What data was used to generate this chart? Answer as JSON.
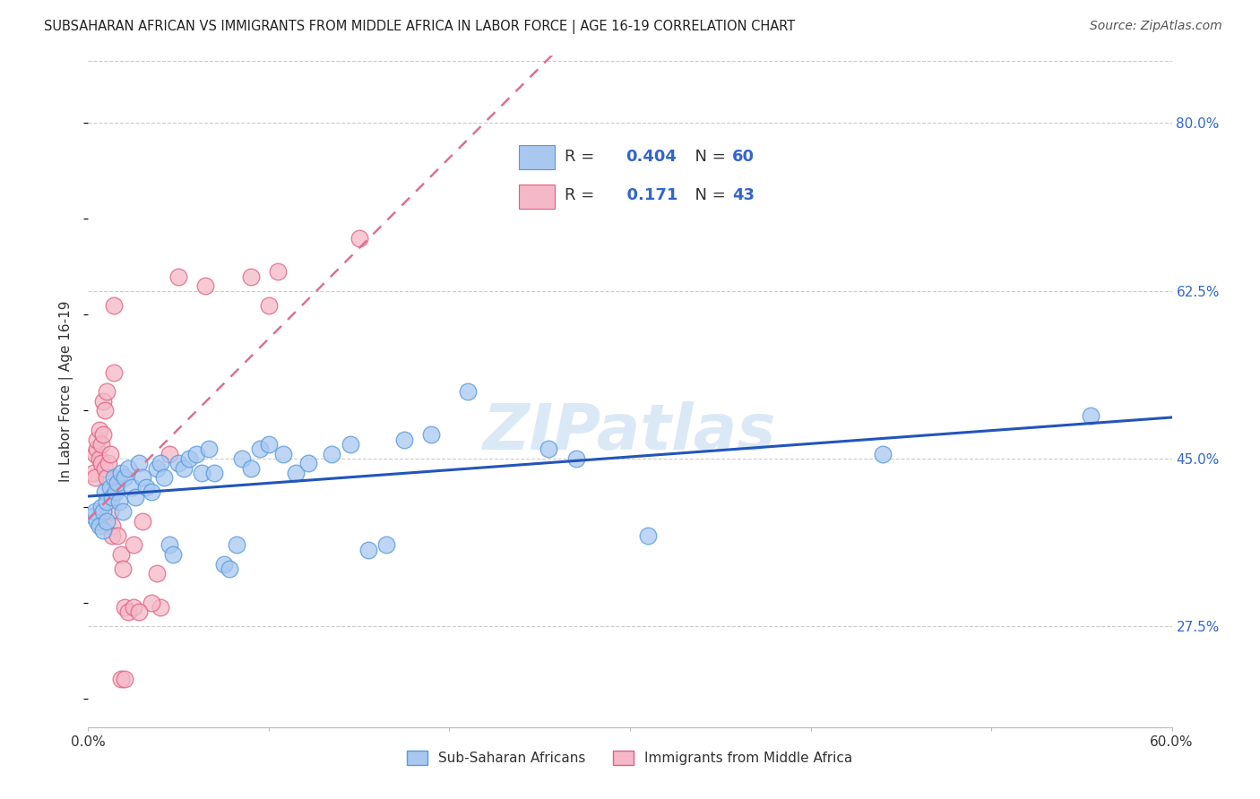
{
  "title": "SUBSAHARAN AFRICAN VS IMMIGRANTS FROM MIDDLE AFRICA IN LABOR FORCE | AGE 16-19 CORRELATION CHART",
  "source": "Source: ZipAtlas.com",
  "ylabel": "In Labor Force | Age 16-19",
  "xlim": [
    0.0,
    0.6
  ],
  "ylim": [
    0.17,
    0.87
  ],
  "xticks": [
    0.0,
    0.1,
    0.2,
    0.3,
    0.4,
    0.5,
    0.6
  ],
  "xticklabels": [
    "0.0%",
    "",
    "",
    "",
    "",
    "",
    "60.0%"
  ],
  "yticks_right": [
    0.275,
    0.45,
    0.625,
    0.8
  ],
  "ytick_labels_right": [
    "27.5%",
    "45.0%",
    "62.5%",
    "80.0%"
  ],
  "blue_R": 0.404,
  "blue_N": 60,
  "pink_R": 0.171,
  "pink_N": 43,
  "blue_color": "#A8C8F0",
  "pink_color": "#F5B8C8",
  "blue_edge_color": "#5599DD",
  "pink_edge_color": "#E06080",
  "blue_line_color": "#2255BB",
  "pink_line_color": "#DD7090",
  "legend_text_color": "#3366CC",
  "text_color": "#333333",
  "grid_color": "#CCCCCC",
  "watermark_color": "#B8D4F0",
  "blue_scatter": [
    [
      0.003,
      0.39
    ],
    [
      0.004,
      0.395
    ],
    [
      0.005,
      0.385
    ],
    [
      0.006,
      0.38
    ],
    [
      0.007,
      0.4
    ],
    [
      0.008,
      0.375
    ],
    [
      0.008,
      0.395
    ],
    [
      0.009,
      0.415
    ],
    [
      0.01,
      0.405
    ],
    [
      0.01,
      0.385
    ],
    [
      0.012,
      0.42
    ],
    [
      0.013,
      0.41
    ],
    [
      0.014,
      0.43
    ],
    [
      0.015,
      0.415
    ],
    [
      0.016,
      0.425
    ],
    [
      0.017,
      0.405
    ],
    [
      0.018,
      0.435
    ],
    [
      0.019,
      0.395
    ],
    [
      0.02,
      0.43
    ],
    [
      0.022,
      0.44
    ],
    [
      0.024,
      0.42
    ],
    [
      0.026,
      0.41
    ],
    [
      0.028,
      0.445
    ],
    [
      0.03,
      0.43
    ],
    [
      0.032,
      0.42
    ],
    [
      0.035,
      0.415
    ],
    [
      0.038,
      0.44
    ],
    [
      0.04,
      0.445
    ],
    [
      0.042,
      0.43
    ],
    [
      0.045,
      0.36
    ],
    [
      0.047,
      0.35
    ],
    [
      0.05,
      0.445
    ],
    [
      0.053,
      0.44
    ],
    [
      0.056,
      0.45
    ],
    [
      0.06,
      0.455
    ],
    [
      0.063,
      0.435
    ],
    [
      0.067,
      0.46
    ],
    [
      0.07,
      0.435
    ],
    [
      0.075,
      0.34
    ],
    [
      0.078,
      0.335
    ],
    [
      0.082,
      0.36
    ],
    [
      0.085,
      0.45
    ],
    [
      0.09,
      0.44
    ],
    [
      0.095,
      0.46
    ],
    [
      0.1,
      0.465
    ],
    [
      0.108,
      0.455
    ],
    [
      0.115,
      0.435
    ],
    [
      0.122,
      0.445
    ],
    [
      0.135,
      0.455
    ],
    [
      0.145,
      0.465
    ],
    [
      0.155,
      0.355
    ],
    [
      0.165,
      0.36
    ],
    [
      0.175,
      0.47
    ],
    [
      0.19,
      0.475
    ],
    [
      0.21,
      0.52
    ],
    [
      0.255,
      0.46
    ],
    [
      0.27,
      0.45
    ],
    [
      0.31,
      0.37
    ],
    [
      0.44,
      0.455
    ],
    [
      0.555,
      0.495
    ]
  ],
  "pink_scatter": [
    [
      0.003,
      0.435
    ],
    [
      0.004,
      0.455
    ],
    [
      0.004,
      0.43
    ],
    [
      0.005,
      0.46
    ],
    [
      0.005,
      0.47
    ],
    [
      0.006,
      0.45
    ],
    [
      0.006,
      0.48
    ],
    [
      0.007,
      0.445
    ],
    [
      0.007,
      0.465
    ],
    [
      0.008,
      0.475
    ],
    [
      0.008,
      0.51
    ],
    [
      0.009,
      0.44
    ],
    [
      0.009,
      0.5
    ],
    [
      0.01,
      0.52
    ],
    [
      0.01,
      0.43
    ],
    [
      0.011,
      0.445
    ],
    [
      0.012,
      0.455
    ],
    [
      0.012,
      0.395
    ],
    [
      0.013,
      0.38
    ],
    [
      0.013,
      0.37
    ],
    [
      0.014,
      0.54
    ],
    [
      0.014,
      0.61
    ],
    [
      0.016,
      0.37
    ],
    [
      0.018,
      0.35
    ],
    [
      0.019,
      0.335
    ],
    [
      0.02,
      0.295
    ],
    [
      0.022,
      0.29
    ],
    [
      0.025,
      0.36
    ],
    [
      0.03,
      0.385
    ],
    [
      0.038,
      0.33
    ],
    [
      0.04,
      0.295
    ],
    [
      0.045,
      0.455
    ],
    [
      0.05,
      0.64
    ],
    [
      0.065,
      0.63
    ],
    [
      0.09,
      0.64
    ],
    [
      0.1,
      0.61
    ],
    [
      0.105,
      0.645
    ],
    [
      0.018,
      0.22
    ],
    [
      0.02,
      0.22
    ],
    [
      0.15,
      0.68
    ],
    [
      0.035,
      0.3
    ],
    [
      0.025,
      0.295
    ],
    [
      0.028,
      0.29
    ]
  ],
  "watermark": "ZIPatlas",
  "background_color": "#FFFFFF"
}
